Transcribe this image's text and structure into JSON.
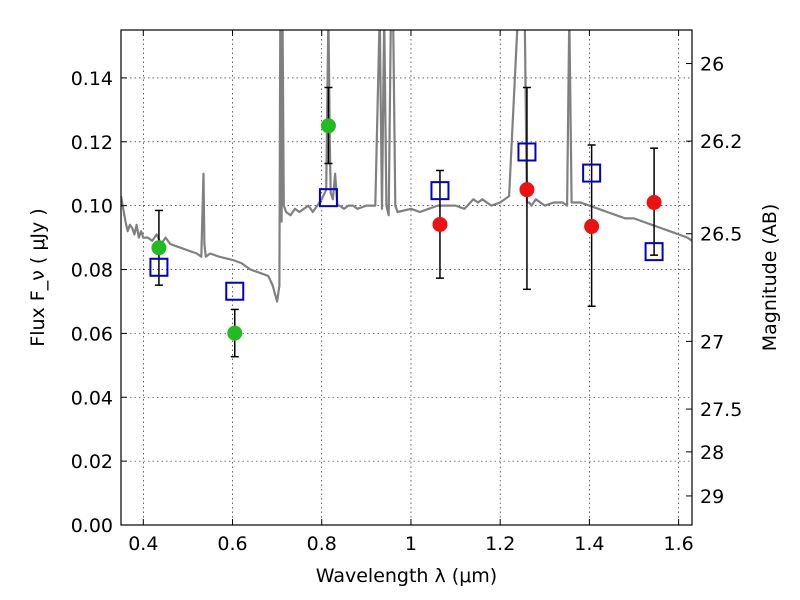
{
  "chart_data": {
    "type": "scatter",
    "xlabel": "Wavelength  λ (μm)",
    "ylabel": "Flux  F_ν  ( μJy )",
    "y2label": "Magnitude (AB)",
    "xlim": [
      0.35,
      1.63
    ],
    "ylim": [
      0.0,
      0.155
    ],
    "grid": true,
    "x_ticks": [
      0.4,
      0.6,
      0.8,
      1.0,
      1.2,
      1.4,
      1.6
    ],
    "x_tick_labels": [
      "0.4",
      "0.6",
      "0.8",
      "1",
      "1.2",
      "1.4",
      "1.6"
    ],
    "y_ticks": [
      0.0,
      0.02,
      0.04,
      0.06,
      0.08,
      0.1,
      0.12,
      0.14
    ],
    "y_tick_labels": [
      "0.00",
      "0.02",
      "0.04",
      "0.06",
      "0.08",
      "0.10",
      "0.12",
      "0.14"
    ],
    "y2_ticks": [
      {
        "label": "26",
        "flux": 0.1445
      },
      {
        "label": "26.2",
        "flux": 0.1202
      },
      {
        "label": "26.5",
        "flux": 0.0912
      },
      {
        "label": "27",
        "flux": 0.0575
      },
      {
        "label": "27.5",
        "flux": 0.0363
      },
      {
        "label": "28",
        "flux": 0.0229
      },
      {
        "label": "29",
        "flux": 0.0091
      }
    ],
    "series": [
      {
        "marker": "line",
        "color": "#808080",
        "x": [
          0.35,
          0.36,
          0.365,
          0.37,
          0.375,
          0.38,
          0.385,
          0.39,
          0.395,
          0.4,
          0.41,
          0.42,
          0.43,
          0.44,
          0.45,
          0.46,
          0.48,
          0.5,
          0.52,
          0.53,
          0.535,
          0.537,
          0.54,
          0.55,
          0.57,
          0.6,
          0.62,
          0.64,
          0.66,
          0.68,
          0.69,
          0.7,
          0.705,
          0.707,
          0.71,
          0.712,
          0.715,
          0.72,
          0.73,
          0.74,
          0.75,
          0.76,
          0.77,
          0.78,
          0.79,
          0.8,
          0.81,
          0.815,
          0.818,
          0.82,
          0.825,
          0.83,
          0.835,
          0.84,
          0.85,
          0.86,
          0.87,
          0.88,
          0.9,
          0.92,
          0.93,
          0.935,
          0.94,
          0.945,
          0.95,
          0.955,
          0.96,
          0.965,
          0.97,
          1.0,
          1.02,
          1.04,
          1.06,
          1.08,
          1.1,
          1.12,
          1.14,
          1.15,
          1.16,
          1.17,
          1.18,
          1.2,
          1.22,
          1.24,
          1.25,
          1.255,
          1.26,
          1.265,
          1.27,
          1.28,
          1.3,
          1.32,
          1.34,
          1.35,
          1.355,
          1.36,
          1.38,
          1.4,
          1.42,
          1.44,
          1.46,
          1.48,
          1.5,
          1.52,
          1.54,
          1.56,
          1.58,
          1.6,
          1.62,
          1.63
        ],
        "y": [
          0.103,
          0.095,
          0.092,
          0.094,
          0.093,
          0.091,
          0.094,
          0.09,
          0.092,
          0.09,
          0.09,
          0.089,
          0.091,
          0.088,
          0.09,
          0.088,
          0.087,
          0.086,
          0.085,
          0.084,
          0.11,
          0.088,
          0.084,
          0.085,
          0.084,
          0.083,
          0.082,
          0.08,
          0.079,
          0.078,
          0.075,
          0.07,
          0.075,
          0.16,
          0.095,
          0.16,
          0.1,
          0.098,
          0.097,
          0.099,
          0.098,
          0.099,
          0.1,
          0.098,
          0.1,
          0.102,
          0.105,
          0.16,
          0.12,
          0.104,
          0.102,
          0.11,
          0.1,
          0.1,
          0.099,
          0.1,
          0.1,
          0.099,
          0.1,
          0.1,
          0.16,
          0.099,
          0.16,
          0.1,
          0.097,
          0.16,
          0.16,
          0.1,
          0.098,
          0.099,
          0.098,
          0.099,
          0.1,
          0.1,
          0.1,
          0.099,
          0.102,
          0.101,
          0.102,
          0.101,
          0.1,
          0.101,
          0.103,
          0.16,
          0.16,
          0.16,
          0.101,
          0.101,
          0.1,
          0.102,
          0.1,
          0.101,
          0.101,
          0.1,
          0.16,
          0.101,
          0.101,
          0.1,
          0.099,
          0.098,
          0.097,
          0.096,
          0.096,
          0.095,
          0.094,
          0.093,
          0.092,
          0.091,
          0.09,
          0.089
        ]
      },
      {
        "marker": "circle",
        "color": "#22bb22",
        "x": [
          0.435,
          0.605,
          0.815
        ],
        "y": [
          0.0868,
          0.0601,
          0.125
        ],
        "err_lower": [
          0.0751,
          0.0527,
          0.1132
        ],
        "err_upper": [
          0.0985,
          0.0675,
          0.137
        ]
      },
      {
        "marker": "circle",
        "color": "#ee1111",
        "x": [
          1.065,
          1.26,
          1.405,
          1.545
        ],
        "y": [
          0.0941,
          0.105,
          0.0935,
          0.101
        ],
        "err_lower": [
          0.0773,
          0.0738,
          0.0685,
          0.0845
        ],
        "err_upper": [
          0.111,
          0.137,
          0.119,
          0.118
        ]
      },
      {
        "marker": "square-open",
        "color": "#0000cc",
        "x": [
          0.435,
          0.605,
          0.815,
          1.065,
          1.26,
          1.405,
          1.545
        ],
        "y": [
          0.0807,
          0.0732,
          0.1025,
          0.1047,
          0.1168,
          0.1102,
          0.0856
        ]
      }
    ]
  }
}
